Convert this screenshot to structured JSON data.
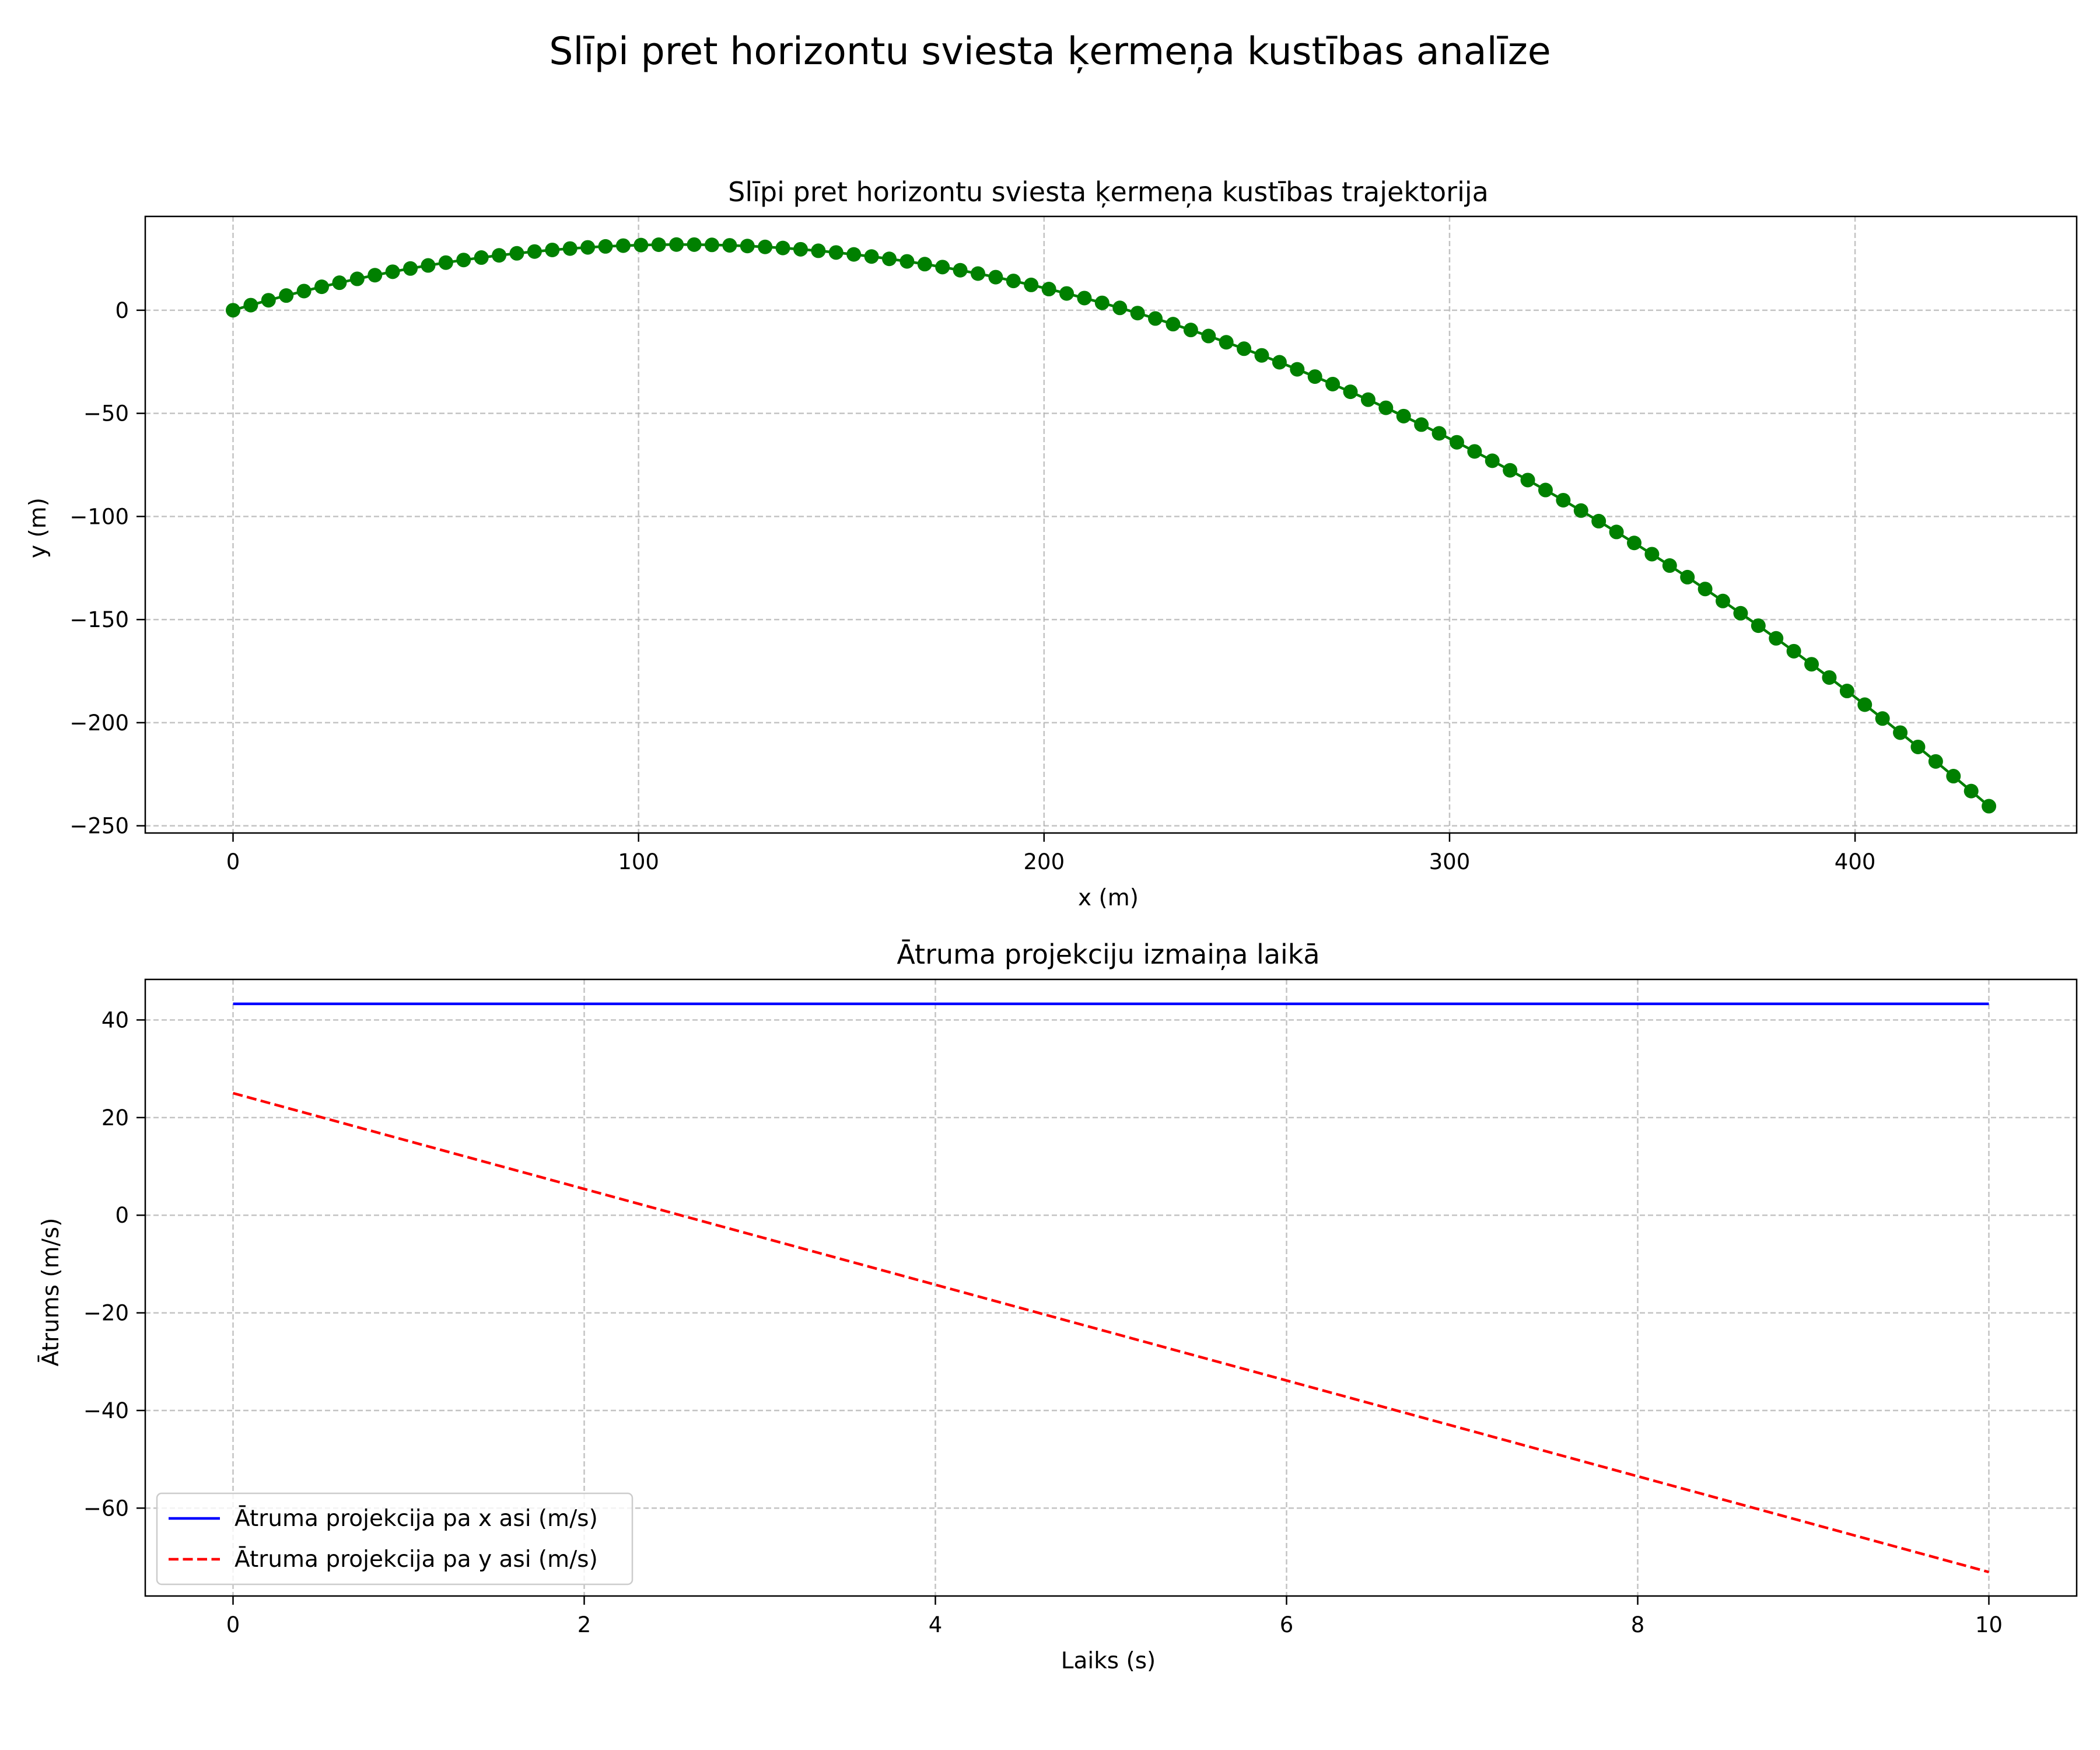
{
  "figure": {
    "suptitle": "Slīpi pret horizontu sviesta ķermeņa kustības analīze"
  },
  "chart_data": [
    {
      "type": "scatter",
      "title": "Slīpi pret horizontu sviesta ķermeņa kustības trajektorija",
      "xlabel": "x (m)",
      "ylabel": "y (m)",
      "xlim": [
        -21.65,
        454.65
      ],
      "ylim": [
        -253.5,
        45.5
      ],
      "xticks": [
        0,
        100,
        200,
        300,
        400
      ],
      "xtick_labels": [
        "0",
        "100",
        "200",
        "300",
        "400"
      ],
      "yticks": [
        0,
        -50,
        -100,
        -150,
        -200,
        -250
      ],
      "ytick_labels": [
        "0",
        "−50",
        "−100",
        "−150",
        "−200",
        "−250"
      ],
      "grid": true,
      "series": [
        {
          "color": "#008000",
          "marker": "circle",
          "line": "solid",
          "parametric": {
            "v0": 50,
            "angle_deg": 30,
            "g": 9.81,
            "t_start": 0,
            "t_end": 10,
            "points": 100
          }
        }
      ]
    },
    {
      "type": "line",
      "title": "Ātruma projekciju izmaiņa laikā",
      "xlabel": "Laiks (s)",
      "ylabel": "Ātrums (m/s)",
      "xlim": [
        -0.5,
        10.5
      ],
      "ylim": [
        -78.0,
        48.3
      ],
      "xticks": [
        0,
        2,
        4,
        6,
        8,
        10
      ],
      "xtick_labels": [
        "0",
        "2",
        "4",
        "6",
        "8",
        "10"
      ],
      "yticks": [
        40,
        20,
        0,
        -20,
        -40,
        -60
      ],
      "ytick_labels": [
        "40",
        "20",
        "0",
        "−20",
        "−40",
        "−60"
      ],
      "grid": true,
      "legend": "lower-left",
      "series": [
        {
          "name": "Ātruma projekcija pa x asi (m/s)",
          "color": "#0000ff",
          "line": "solid",
          "x": [
            0,
            10
          ],
          "y": [
            43.3,
            43.3
          ]
        },
        {
          "name": "Ātruma projekcija pa y asi (m/s)",
          "color": "#ff0000",
          "line": "dashed",
          "x": [
            0,
            10
          ],
          "y": [
            25.0,
            -73.1
          ]
        }
      ]
    }
  ]
}
